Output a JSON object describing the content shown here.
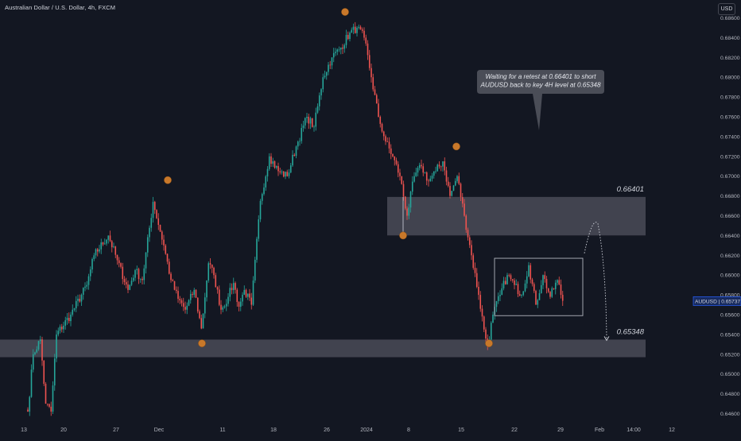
{
  "header": {
    "symbol_title": "Australian Dollar / U.S. Dollar, 4h, FXCM",
    "currency_label": "USD"
  },
  "annotation": {
    "line1": "Waiting for a retest at 0.66401 to short",
    "line2": "AUDUSD back to key 4H level at 0.65348"
  },
  "colors": {
    "background": "#131722",
    "up": "#26a69a",
    "down": "#ef5350",
    "zone": "#5d606b",
    "marker": "#c8782a",
    "price_tag": "#2962ff",
    "axis_text": "#b2b5be"
  },
  "chart_data": {
    "type": "candlestick",
    "symbol": "AUDUSD",
    "exchange": "FXCM",
    "timeframe": "4h",
    "current_price": "0.65737",
    "price_tag_label": "AUDUSD | 0.65737",
    "ylim": [
      0.6455,
      0.6872
    ],
    "y_ticks": [
      "0.68600",
      "0.68400",
      "0.68200",
      "0.68000",
      "0.67800",
      "0.67600",
      "0.67400",
      "0.67200",
      "0.67000",
      "0.66800",
      "0.66600",
      "0.66400",
      "0.66200",
      "0.66000",
      "0.65800",
      "0.65600",
      "0.65400",
      "0.65200",
      "0.65000",
      "0.64800",
      "0.64600"
    ],
    "x_ticks": [
      "13",
      "20",
      "27",
      "Dec",
      "11",
      "18",
      "26",
      "2024",
      "8",
      "15",
      "22",
      "29",
      "Feb",
      "14:00",
      "12"
    ],
    "levels": [
      {
        "label": "0.66401",
        "price": 0.66401,
        "zone": [
          0.66401,
          0.6679
        ]
      },
      {
        "label": "0.65348",
        "price": 0.65348,
        "zone": [
          0.6517,
          0.65348
        ]
      }
    ],
    "anchors": [
      [
        0,
        0.6462
      ],
      [
        3,
        0.652
      ],
      [
        7,
        0.6535
      ],
      [
        10,
        0.647
      ],
      [
        13,
        0.6462
      ],
      [
        16,
        0.654
      ],
      [
        24,
        0.656
      ],
      [
        33,
        0.659
      ],
      [
        37,
        0.662
      ],
      [
        45,
        0.664
      ],
      [
        50,
        0.6615
      ],
      [
        56,
        0.6585
      ],
      [
        60,
        0.6605
      ],
      [
        64,
        0.6595
      ],
      [
        70,
        0.6674
      ],
      [
        76,
        0.663
      ],
      [
        80,
        0.6595
      ],
      [
        84,
        0.6576
      ],
      [
        88,
        0.6565
      ],
      [
        93,
        0.6585
      ],
      [
        97,
        0.6546
      ],
      [
        101,
        0.6612
      ],
      [
        104,
        0.66
      ],
      [
        108,
        0.6565
      ],
      [
        112,
        0.6578
      ],
      [
        115,
        0.6592
      ],
      [
        118,
        0.6568
      ],
      [
        121,
        0.6585
      ],
      [
        125,
        0.657
      ],
      [
        130,
        0.6675
      ],
      [
        135,
        0.672
      ],
      [
        140,
        0.6705
      ],
      [
        145,
        0.67
      ],
      [
        150,
        0.673
      ],
      [
        156,
        0.676
      ],
      [
        160,
        0.675
      ],
      [
        165,
        0.68
      ],
      [
        170,
        0.682
      ],
      [
        175,
        0.683
      ],
      [
        180,
        0.6845
      ],
      [
        184,
        0.685
      ],
      [
        188,
        0.684
      ],
      [
        192,
        0.68
      ],
      [
        196,
        0.676
      ],
      [
        200,
        0.6735
      ],
      [
        204,
        0.672
      ],
      [
        208,
        0.67
      ],
      [
        212,
        0.666
      ],
      [
        216,
        0.67
      ],
      [
        220,
        0.671
      ],
      [
        224,
        0.6695
      ],
      [
        228,
        0.6705
      ],
      [
        232,
        0.6715
      ],
      [
        236,
        0.668
      ],
      [
        240,
        0.67
      ],
      [
        244,
        0.666
      ],
      [
        248,
        0.662
      ],
      [
        252,
        0.658
      ],
      [
        255,
        0.6545
      ],
      [
        257,
        0.6528
      ],
      [
        260,
        0.656
      ],
      [
        264,
        0.658
      ],
      [
        268,
        0.66
      ],
      [
        272,
        0.659
      ],
      [
        276,
        0.658
      ],
      [
        280,
        0.661
      ],
      [
        284,
        0.657
      ],
      [
        288,
        0.66
      ],
      [
        292,
        0.6578
      ],
      [
        296,
        0.6595
      ],
      [
        299,
        0.6574
      ]
    ],
    "markers": [
      {
        "price": 0.6696
      },
      {
        "price": 0.6531
      },
      {
        "price": 0.6866
      },
      {
        "price": 0.664
      },
      {
        "price": 0.673
      },
      {
        "price": 0.6531
      }
    ]
  }
}
